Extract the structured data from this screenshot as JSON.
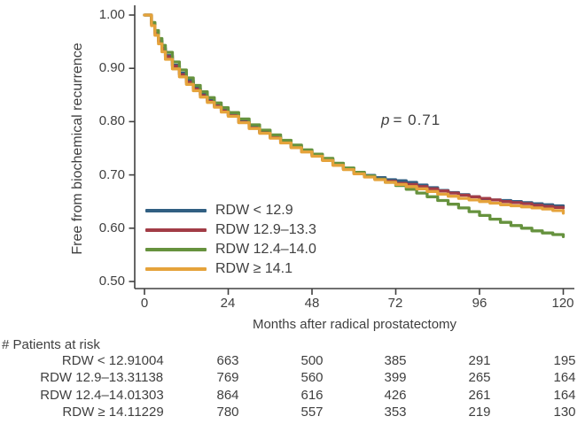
{
  "figure": {
    "background": "#ffffff",
    "text_color": "#3f3f3f",
    "axis_color": "#404040"
  },
  "chart_data": {
    "type": "line",
    "subtype": "kaplan-meier-step",
    "title": "",
    "xlabel": "Months after radical prostatectomy",
    "ylabel": "Free from biochemical recurrence",
    "xlim": [
      0,
      120
    ],
    "ylim": [
      0.48,
      1.02
    ],
    "grid": "off",
    "legend_position": "inside-lower-left",
    "x_tick_labels": [
      "0",
      "24",
      "48",
      "72",
      "96",
      "120"
    ],
    "y_tick_labels": [
      "1.00",
      "0.90",
      "0.80",
      "0.70",
      "0.60",
      "0.50"
    ],
    "annotation": {
      "symbol": "p",
      "rest": "= 0.71"
    },
    "series": [
      {
        "name": "RDW < 12.9",
        "color": "#315f82",
        "points": [
          [
            0,
            1.0
          ],
          [
            1,
            1.0
          ],
          [
            2,
            0.984
          ],
          [
            3,
            0.968
          ],
          [
            4,
            0.952
          ],
          [
            5,
            0.938
          ],
          [
            6,
            0.924
          ],
          [
            8,
            0.906
          ],
          [
            10,
            0.891
          ],
          [
            12,
            0.877
          ],
          [
            14,
            0.863
          ],
          [
            16,
            0.851
          ],
          [
            18,
            0.84
          ],
          [
            20,
            0.83
          ],
          [
            22,
            0.821
          ],
          [
            24,
            0.812
          ],
          [
            27,
            0.8
          ],
          [
            30,
            0.79
          ],
          [
            33,
            0.78
          ],
          [
            36,
            0.771
          ],
          [
            39,
            0.762
          ],
          [
            42,
            0.753
          ],
          [
            45,
            0.745
          ],
          [
            48,
            0.737
          ],
          [
            51,
            0.729
          ],
          [
            54,
            0.72
          ],
          [
            57,
            0.712
          ],
          [
            60,
            0.705
          ],
          [
            63,
            0.699
          ],
          [
            66,
            0.695
          ],
          [
            69,
            0.691
          ],
          [
            72,
            0.689
          ],
          [
            75,
            0.686
          ],
          [
            78,
            0.681
          ],
          [
            81,
            0.676
          ],
          [
            84,
            0.671
          ],
          [
            87,
            0.667
          ],
          [
            90,
            0.663
          ],
          [
            93,
            0.659
          ],
          [
            96,
            0.655
          ],
          [
            99,
            0.653
          ],
          [
            102,
            0.652
          ],
          [
            105,
            0.65
          ],
          [
            108,
            0.648
          ],
          [
            111,
            0.646
          ],
          [
            114,
            0.644
          ],
          [
            117,
            0.642
          ],
          [
            120,
            0.641
          ]
        ]
      },
      {
        "name": "RDW 12.9–13.3",
        "color": "#a23c46",
        "points": [
          [
            0,
            1.0
          ],
          [
            1,
            1.0
          ],
          [
            2,
            0.982
          ],
          [
            3,
            0.965
          ],
          [
            4,
            0.95
          ],
          [
            5,
            0.936
          ],
          [
            6,
            0.922
          ],
          [
            8,
            0.904
          ],
          [
            10,
            0.888
          ],
          [
            12,
            0.874
          ],
          [
            14,
            0.861
          ],
          [
            16,
            0.849
          ],
          [
            18,
            0.838
          ],
          [
            20,
            0.829
          ],
          [
            22,
            0.82
          ],
          [
            24,
            0.811
          ],
          [
            27,
            0.799
          ],
          [
            30,
            0.788
          ],
          [
            33,
            0.779
          ],
          [
            36,
            0.77
          ],
          [
            39,
            0.761
          ],
          [
            42,
            0.752
          ],
          [
            45,
            0.744
          ],
          [
            48,
            0.736
          ],
          [
            51,
            0.728
          ],
          [
            54,
            0.719
          ],
          [
            57,
            0.711
          ],
          [
            60,
            0.703
          ],
          [
            63,
            0.697
          ],
          [
            66,
            0.692
          ],
          [
            69,
            0.688
          ],
          [
            72,
            0.684
          ],
          [
            75,
            0.682
          ],
          [
            78,
            0.678
          ],
          [
            81,
            0.674
          ],
          [
            84,
            0.67
          ],
          [
            87,
            0.666
          ],
          [
            90,
            0.662
          ],
          [
            93,
            0.659
          ],
          [
            96,
            0.656
          ],
          [
            99,
            0.653
          ],
          [
            102,
            0.65
          ],
          [
            105,
            0.648
          ],
          [
            108,
            0.646
          ],
          [
            111,
            0.643
          ],
          [
            114,
            0.641
          ],
          [
            117,
            0.639
          ],
          [
            120,
            0.638
          ]
        ]
      },
      {
        "name": "RDW 12.4–14.0",
        "color": "#66923e",
        "points": [
          [
            0,
            1.0
          ],
          [
            1,
            1.0
          ],
          [
            2,
            0.986
          ],
          [
            3,
            0.971
          ],
          [
            4,
            0.956
          ],
          [
            5,
            0.943
          ],
          [
            6,
            0.93
          ],
          [
            8,
            0.912
          ],
          [
            10,
            0.897
          ],
          [
            12,
            0.882
          ],
          [
            14,
            0.868
          ],
          [
            16,
            0.856
          ],
          [
            18,
            0.845
          ],
          [
            20,
            0.835
          ],
          [
            22,
            0.826
          ],
          [
            24,
            0.817
          ],
          [
            27,
            0.805
          ],
          [
            30,
            0.794
          ],
          [
            33,
            0.784
          ],
          [
            36,
            0.775
          ],
          [
            39,
            0.765
          ],
          [
            42,
            0.756
          ],
          [
            45,
            0.747
          ],
          [
            48,
            0.739
          ],
          [
            51,
            0.731
          ],
          [
            54,
            0.722
          ],
          [
            57,
            0.713
          ],
          [
            60,
            0.705
          ],
          [
            63,
            0.698
          ],
          [
            66,
            0.692
          ],
          [
            69,
            0.686
          ],
          [
            72,
            0.68
          ],
          [
            75,
            0.673
          ],
          [
            78,
            0.666
          ],
          [
            81,
            0.659
          ],
          [
            84,
            0.652
          ],
          [
            87,
            0.645
          ],
          [
            90,
            0.638
          ],
          [
            93,
            0.631
          ],
          [
            96,
            0.624
          ],
          [
            99,
            0.617
          ],
          [
            102,
            0.611
          ],
          [
            105,
            0.605
          ],
          [
            108,
            0.6
          ],
          [
            111,
            0.595
          ],
          [
            114,
            0.591
          ],
          [
            117,
            0.588
          ],
          [
            120,
            0.584
          ]
        ]
      },
      {
        "name": "RDW ≥ 14.1",
        "color": "#e5a33b",
        "points": [
          [
            0,
            1.0
          ],
          [
            1,
            1.0
          ],
          [
            2,
            0.98
          ],
          [
            3,
            0.962
          ],
          [
            4,
            0.946
          ],
          [
            5,
            0.931
          ],
          [
            6,
            0.917
          ],
          [
            8,
            0.899
          ],
          [
            10,
            0.884
          ],
          [
            12,
            0.87
          ],
          [
            14,
            0.858
          ],
          [
            16,
            0.846
          ],
          [
            18,
            0.836
          ],
          [
            20,
            0.827
          ],
          [
            22,
            0.818
          ],
          [
            24,
            0.81
          ],
          [
            27,
            0.798
          ],
          [
            30,
            0.787
          ],
          [
            33,
            0.778
          ],
          [
            36,
            0.769
          ],
          [
            39,
            0.76
          ],
          [
            42,
            0.751
          ],
          [
            45,
            0.743
          ],
          [
            48,
            0.735
          ],
          [
            51,
            0.727
          ],
          [
            54,
            0.718
          ],
          [
            57,
            0.71
          ],
          [
            60,
            0.702
          ],
          [
            63,
            0.696
          ],
          [
            66,
            0.691
          ],
          [
            69,
            0.686
          ],
          [
            72,
            0.682
          ],
          [
            75,
            0.678
          ],
          [
            78,
            0.674
          ],
          [
            81,
            0.669
          ],
          [
            84,
            0.664
          ],
          [
            87,
            0.66
          ],
          [
            90,
            0.656
          ],
          [
            93,
            0.653
          ],
          [
            96,
            0.65
          ],
          [
            99,
            0.647
          ],
          [
            102,
            0.644
          ],
          [
            105,
            0.642
          ],
          [
            108,
            0.64
          ],
          [
            111,
            0.638
          ],
          [
            114,
            0.636
          ],
          [
            117,
            0.633
          ],
          [
            120,
            0.628
          ]
        ]
      }
    ],
    "risk_table": {
      "heading": "# Patients at risk",
      "time_points": [
        0,
        24,
        48,
        72,
        96,
        120
      ],
      "rows": [
        {
          "label": "RDW < 12.9",
          "counts": [
            "1004",
            "663",
            "500",
            "385",
            "291",
            "195"
          ]
        },
        {
          "label": "RDW 12.9–13.3",
          "counts": [
            "1138",
            "769",
            "560",
            "399",
            "265",
            "164"
          ]
        },
        {
          "label": "RDW 12.4–14.0",
          "counts": [
            "1303",
            "864",
            "616",
            "426",
            "261",
            "164"
          ]
        },
        {
          "label": "RDW ≥ 14.1",
          "counts": [
            "1229",
            "780",
            "557",
            "353",
            "219",
            "130"
          ]
        }
      ]
    }
  }
}
